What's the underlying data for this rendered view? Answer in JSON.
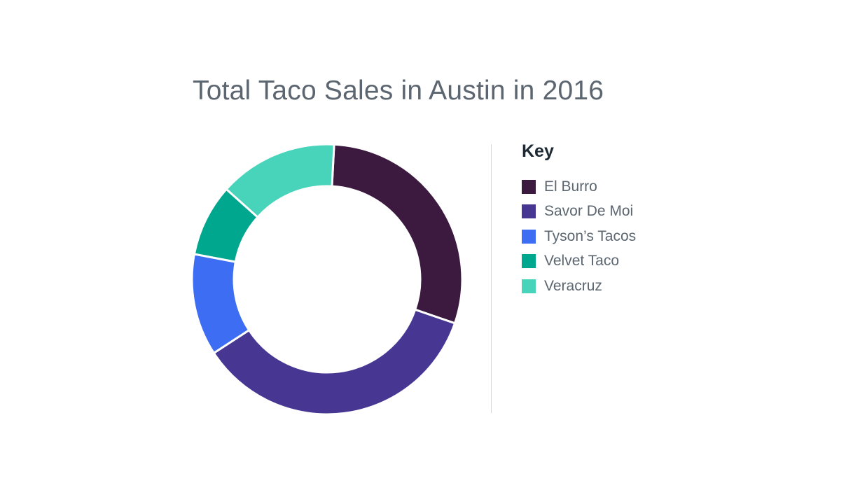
{
  "chart_data": {
    "type": "pie",
    "variant": "donut",
    "title": "Total Taco Sales in Austin in 2016",
    "legend_title": "Key",
    "legend_position": "right",
    "categories": [
      "El Burro",
      "Savor De Moi",
      "Tyson’s Tacos",
      "Velvet Taco",
      "Veracruz"
    ],
    "values": [
      29,
      35,
      12,
      8.5,
      14
    ],
    "colors": [
      "#3c1a40",
      "#473793",
      "#3d6df2",
      "#00a78f",
      "#48d4bb"
    ]
  }
}
